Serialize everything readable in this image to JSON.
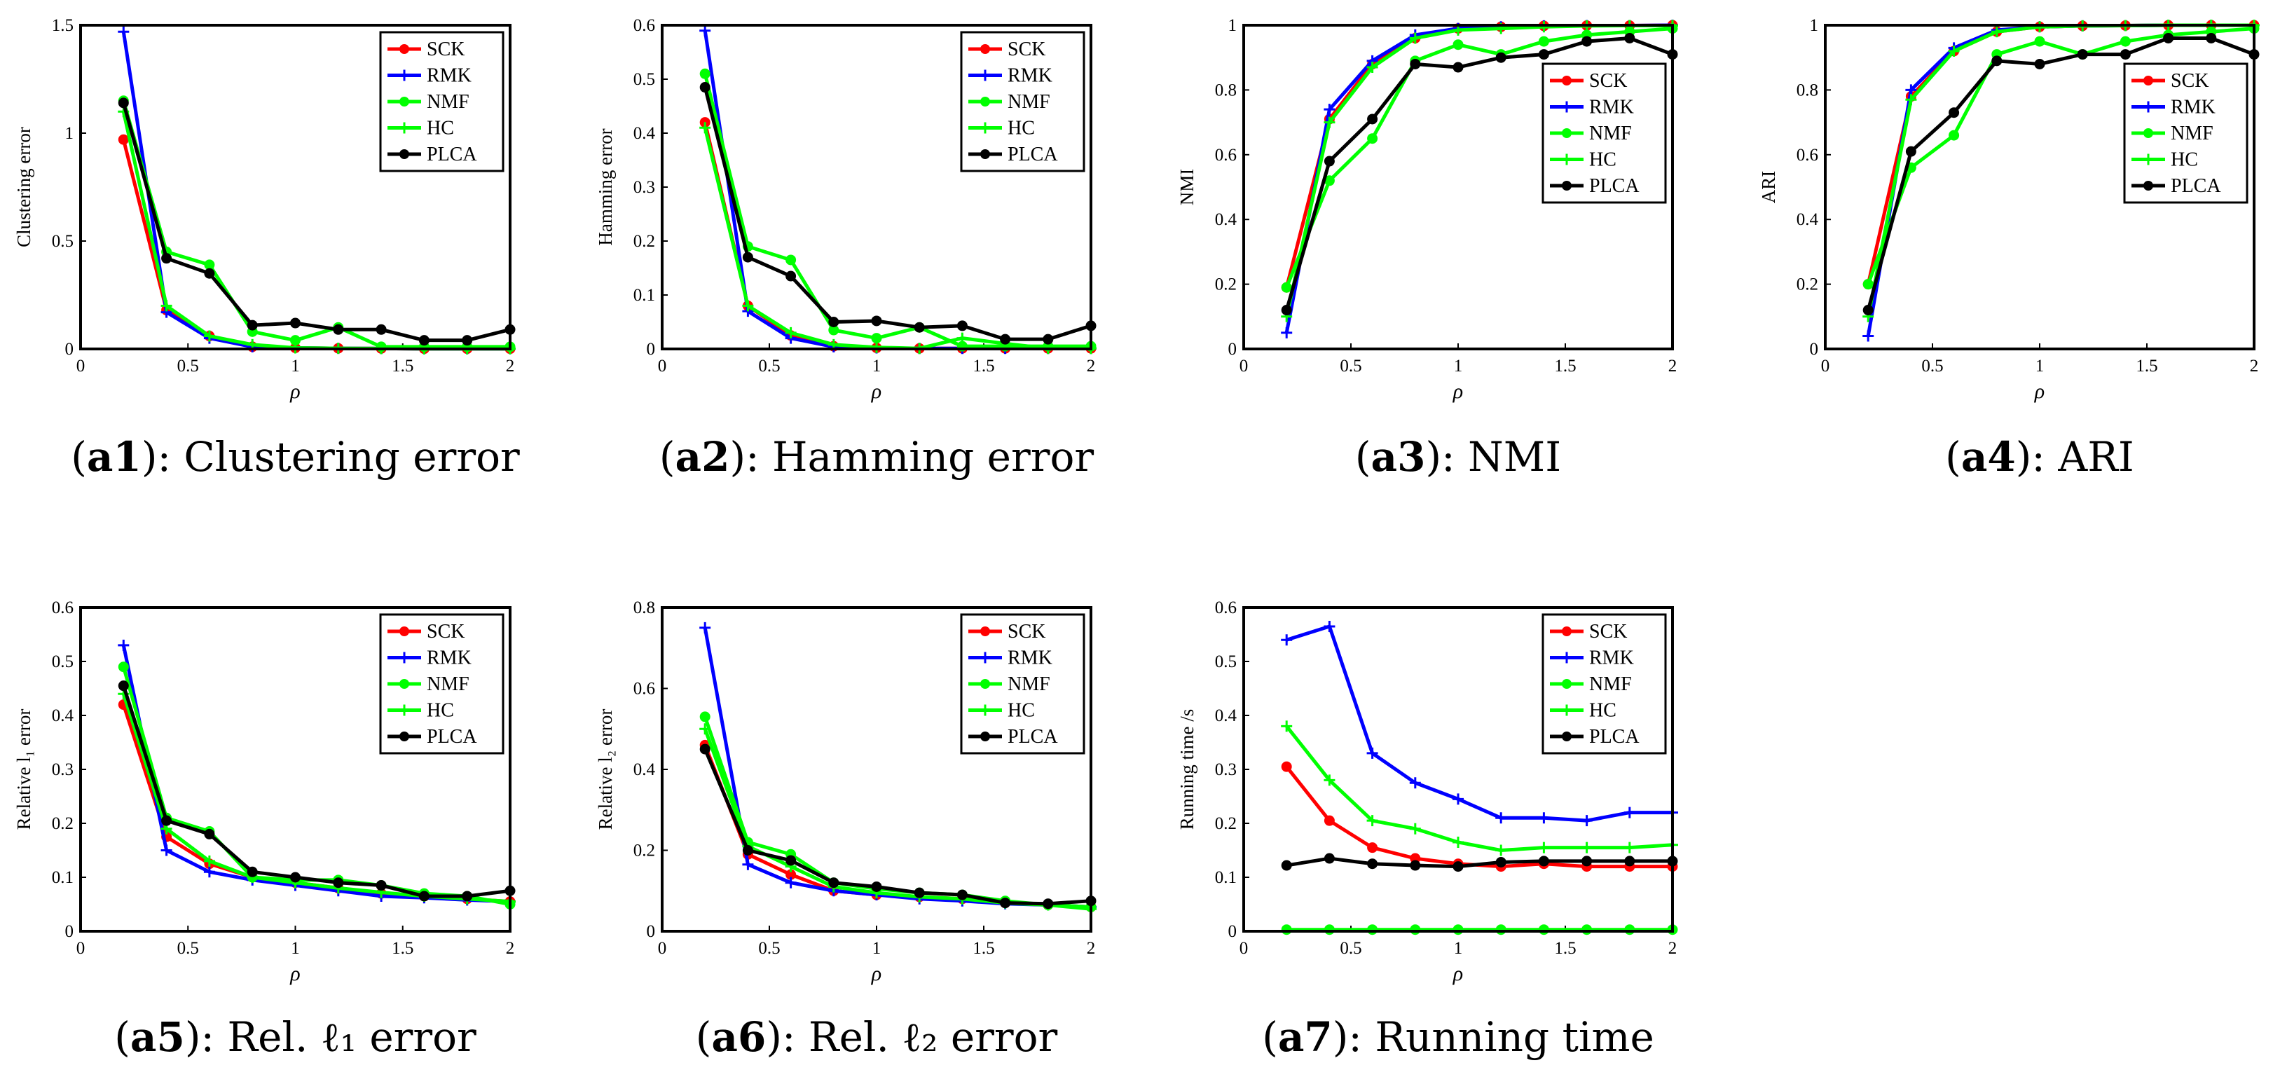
{
  "colors": {
    "SCK": "#ff0000",
    "RMK": "#0000ff",
    "NMF": "#00ff00",
    "HC": "#00ff00",
    "PLCA": "#000000"
  },
  "legend_entries": [
    "SCK",
    "RMK",
    "NMF",
    "HC",
    "PLCA"
  ],
  "chart_data": [
    {
      "id": "a1",
      "type": "line",
      "caption_tag": "a1",
      "caption_text": "Clustering error",
      "xlabel": "ρ",
      "ylabel": "Clustering error",
      "xlim": [
        0,
        2
      ],
      "ylim": [
        0,
        1.5
      ],
      "xticks": [
        "0",
        "0.5",
        "1",
        "1.5",
        "2"
      ],
      "yticks": [
        "0",
        "0.5",
        "1",
        "1.5"
      ],
      "legend_position": "top-right",
      "x": [
        0.2,
        0.4,
        0.6,
        0.8,
        1.0,
        1.2,
        1.4,
        1.6,
        1.8,
        2.0
      ],
      "series": [
        {
          "name": "SCK",
          "marker": "circle",
          "values": [
            0.97,
            0.18,
            0.06,
            0.01,
            0.005,
            0.003,
            0.002,
            0.001,
            0.001,
            0.001
          ]
        },
        {
          "name": "RMK",
          "marker": "plus",
          "values": [
            1.47,
            0.17,
            0.05,
            0.01,
            0.005,
            0.003,
            0.002,
            0.001,
            0.001,
            0.001
          ]
        },
        {
          "name": "NMF",
          "marker": "circle",
          "values": [
            1.15,
            0.45,
            0.39,
            0.08,
            0.04,
            0.1,
            0.01,
            0.01,
            0.01,
            0.01
          ]
        },
        {
          "name": "HC",
          "marker": "plus",
          "values": [
            1.1,
            0.2,
            0.06,
            0.02,
            0.005,
            0.003,
            0.002,
            0.001,
            0.001,
            0.001
          ]
        },
        {
          "name": "PLCA",
          "marker": "circle",
          "values": [
            1.14,
            0.42,
            0.35,
            0.11,
            0.12,
            0.09,
            0.09,
            0.04,
            0.04,
            0.09
          ]
        }
      ]
    },
    {
      "id": "a2",
      "type": "line",
      "caption_tag": "a2",
      "caption_text": "Hamming error",
      "xlabel": "ρ",
      "ylabel": "Hamming error",
      "xlim": [
        0,
        2
      ],
      "ylim": [
        0,
        0.6
      ],
      "xticks": [
        "0",
        "0.5",
        "1",
        "1.5",
        "2"
      ],
      "yticks": [
        "0",
        "0.1",
        "0.2",
        "0.3",
        "0.4",
        "0.5",
        "0.6"
      ],
      "legend_position": "top-right",
      "x": [
        0.2,
        0.4,
        0.6,
        0.8,
        1.0,
        1.2,
        1.4,
        1.6,
        1.8,
        2.0
      ],
      "series": [
        {
          "name": "SCK",
          "marker": "circle",
          "values": [
            0.42,
            0.08,
            0.025,
            0.005,
            0.002,
            0.001,
            0.001,
            0.001,
            0.001,
            0.001
          ]
        },
        {
          "name": "RMK",
          "marker": "plus",
          "values": [
            0.59,
            0.07,
            0.02,
            0.004,
            0.002,
            0.001,
            0.001,
            0.001,
            0.001,
            0.001
          ]
        },
        {
          "name": "NMF",
          "marker": "circle",
          "values": [
            0.51,
            0.19,
            0.165,
            0.035,
            0.02,
            0.04,
            0.005,
            0.005,
            0.005,
            0.005
          ]
        },
        {
          "name": "HC",
          "marker": "plus",
          "values": [
            0.41,
            0.08,
            0.03,
            0.008,
            0.003,
            0.001,
            0.02,
            0.01,
            0.001,
            0.001
          ]
        },
        {
          "name": "PLCA",
          "marker": "circle",
          "values": [
            0.485,
            0.17,
            0.135,
            0.05,
            0.052,
            0.04,
            0.043,
            0.018,
            0.018,
            0.043
          ]
        }
      ]
    },
    {
      "id": "a3",
      "type": "line",
      "caption_tag": "a3",
      "caption_text": "NMI",
      "xlabel": "ρ",
      "ylabel": "NMI",
      "xlim": [
        0,
        2
      ],
      "ylim": [
        0,
        1
      ],
      "xticks": [
        "0",
        "0.5",
        "1",
        "1.5",
        "2"
      ],
      "yticks": [
        "0",
        "0.2",
        "0.4",
        "0.6",
        "0.8",
        "1"
      ],
      "legend_position": "middle-right",
      "x": [
        0.2,
        0.4,
        0.6,
        0.8,
        1.0,
        1.2,
        1.4,
        1.6,
        1.8,
        2.0
      ],
      "series": [
        {
          "name": "SCK",
          "marker": "circle",
          "values": [
            0.19,
            0.71,
            0.88,
            0.96,
            0.99,
            0.995,
            0.998,
            0.999,
            0.999,
            1.0
          ]
        },
        {
          "name": "RMK",
          "marker": "plus",
          "values": [
            0.05,
            0.74,
            0.89,
            0.97,
            0.99,
            0.995,
            0.998,
            0.999,
            0.999,
            1.0
          ]
        },
        {
          "name": "NMF",
          "marker": "circle",
          "values": [
            0.19,
            0.52,
            0.65,
            0.89,
            0.94,
            0.91,
            0.95,
            0.97,
            0.98,
            0.99
          ]
        },
        {
          "name": "HC",
          "marker": "plus",
          "values": [
            0.1,
            0.7,
            0.87,
            0.96,
            0.985,
            0.99,
            0.995,
            0.998,
            0.999,
            0.999
          ]
        },
        {
          "name": "PLCA",
          "marker": "circle",
          "values": [
            0.12,
            0.58,
            0.71,
            0.88,
            0.87,
            0.9,
            0.91,
            0.95,
            0.96,
            0.91
          ]
        }
      ]
    },
    {
      "id": "a4",
      "type": "line",
      "caption_tag": "a4",
      "caption_text": "ARI",
      "xlabel": "ρ",
      "ylabel": "ARI",
      "xlim": [
        0,
        2
      ],
      "ylim": [
        0,
        1
      ],
      "xticks": [
        "0",
        "0.5",
        "1",
        "1.5",
        "2"
      ],
      "yticks": [
        "0",
        "0.2",
        "0.4",
        "0.6",
        "0.8",
        "1"
      ],
      "legend_position": "middle-right",
      "x": [
        0.2,
        0.4,
        0.6,
        0.8,
        1.0,
        1.2,
        1.4,
        1.6,
        1.8,
        2.0
      ],
      "series": [
        {
          "name": "SCK",
          "marker": "circle",
          "values": [
            0.2,
            0.78,
            0.92,
            0.98,
            0.995,
            0.998,
            0.999,
            1.0,
            1.0,
            1.0
          ]
        },
        {
          "name": "RMK",
          "marker": "plus",
          "values": [
            0.04,
            0.8,
            0.93,
            0.985,
            0.995,
            0.998,
            0.999,
            1.0,
            1.0,
            1.0
          ]
        },
        {
          "name": "NMF",
          "marker": "circle",
          "values": [
            0.2,
            0.56,
            0.66,
            0.91,
            0.95,
            0.91,
            0.95,
            0.97,
            0.98,
            0.99
          ]
        },
        {
          "name": "HC",
          "marker": "plus",
          "values": [
            0.1,
            0.77,
            0.92,
            0.98,
            0.995,
            0.998,
            0.999,
            1.0,
            1.0,
            1.0
          ]
        },
        {
          "name": "PLCA",
          "marker": "circle",
          "values": [
            0.12,
            0.61,
            0.73,
            0.89,
            0.88,
            0.91,
            0.91,
            0.96,
            0.96,
            0.91
          ]
        }
      ]
    },
    {
      "id": "a5",
      "type": "line",
      "caption_tag": "a5",
      "caption_text": "Rel. ℓ₁ error",
      "xlabel": "ρ",
      "ylabel": "Relative l₁ error",
      "xlim": [
        0,
        2
      ],
      "ylim": [
        0,
        0.6
      ],
      "xticks": [
        "0",
        "0.5",
        "1",
        "1.5",
        "2"
      ],
      "yticks": [
        "0",
        "0.1",
        "0.2",
        "0.3",
        "0.4",
        "0.5",
        "0.6"
      ],
      "legend_position": "top-right",
      "x": [
        0.2,
        0.4,
        0.6,
        0.8,
        1.0,
        1.2,
        1.4,
        1.6,
        1.8,
        2.0
      ],
      "series": [
        {
          "name": "SCK",
          "marker": "circle",
          "values": [
            0.42,
            0.175,
            0.125,
            0.1,
            0.09,
            0.08,
            0.07,
            0.065,
            0.06,
            0.055
          ]
        },
        {
          "name": "RMK",
          "marker": "plus",
          "values": [
            0.53,
            0.15,
            0.11,
            0.095,
            0.085,
            0.075,
            0.065,
            0.062,
            0.058,
            0.055
          ]
        },
        {
          "name": "NMF",
          "marker": "circle",
          "values": [
            0.49,
            0.21,
            0.185,
            0.1,
            0.095,
            0.095,
            0.085,
            0.07,
            0.065,
            0.05
          ]
        },
        {
          "name": "HC",
          "marker": "plus",
          "values": [
            0.44,
            0.19,
            0.13,
            0.1,
            0.09,
            0.08,
            0.072,
            0.065,
            0.06,
            0.055
          ]
        },
        {
          "name": "PLCA",
          "marker": "circle",
          "values": [
            0.455,
            0.205,
            0.18,
            0.11,
            0.1,
            0.09,
            0.085,
            0.065,
            0.065,
            0.075
          ]
        }
      ]
    },
    {
      "id": "a6",
      "type": "line",
      "caption_tag": "a6",
      "caption_text": "Rel. ℓ₂ error",
      "xlabel": "ρ",
      "ylabel": "Relative l₂ error",
      "xlim": [
        0,
        2
      ],
      "ylim": [
        0,
        0.8
      ],
      "xticks": [
        "0",
        "0.5",
        "1",
        "1.5",
        "2"
      ],
      "yticks": [
        "0",
        "0.2",
        "0.4",
        "0.6",
        "0.8"
      ],
      "legend_position": "top-right",
      "x": [
        0.2,
        0.4,
        0.6,
        0.8,
        1.0,
        1.2,
        1.4,
        1.6,
        1.8,
        2.0
      ],
      "series": [
        {
          "name": "SCK",
          "marker": "circle",
          "values": [
            0.46,
            0.19,
            0.14,
            0.1,
            0.09,
            0.085,
            0.08,
            0.07,
            0.065,
            0.06
          ]
        },
        {
          "name": "RMK",
          "marker": "plus",
          "values": [
            0.75,
            0.165,
            0.12,
            0.1,
            0.09,
            0.08,
            0.075,
            0.068,
            0.065,
            0.06
          ]
        },
        {
          "name": "NMF",
          "marker": "circle",
          "values": [
            0.53,
            0.22,
            0.19,
            0.12,
            0.105,
            0.095,
            0.09,
            0.075,
            0.065,
            0.06
          ]
        },
        {
          "name": "HC",
          "marker": "plus",
          "values": [
            0.5,
            0.21,
            0.16,
            0.11,
            0.095,
            0.085,
            0.08,
            0.07,
            0.065,
            0.055
          ]
        },
        {
          "name": "PLCA",
          "marker": "circle",
          "values": [
            0.45,
            0.2,
            0.175,
            0.12,
            0.11,
            0.095,
            0.09,
            0.07,
            0.068,
            0.075
          ]
        }
      ]
    },
    {
      "id": "a7",
      "type": "line",
      "caption_tag": "a7",
      "caption_text": "Running time",
      "xlabel": "ρ",
      "ylabel": "Running time /s",
      "xlim": [
        0,
        2
      ],
      "ylim": [
        0,
        0.6
      ],
      "xticks": [
        "0",
        "0.5",
        "1",
        "1.5",
        "2"
      ],
      "yticks": [
        "0",
        "0.1",
        "0.2",
        "0.3",
        "0.4",
        "0.5",
        "0.6"
      ],
      "legend_position": "top-right",
      "x": [
        0.2,
        0.4,
        0.6,
        0.8,
        1.0,
        1.2,
        1.4,
        1.6,
        1.8,
        2.0
      ],
      "series": [
        {
          "name": "SCK",
          "marker": "circle",
          "values": [
            0.305,
            0.205,
            0.155,
            0.135,
            0.125,
            0.12,
            0.125,
            0.12,
            0.12,
            0.12
          ]
        },
        {
          "name": "RMK",
          "marker": "plus",
          "values": [
            0.54,
            0.565,
            0.33,
            0.275,
            0.245,
            0.21,
            0.21,
            0.205,
            0.22,
            0.22
          ]
        },
        {
          "name": "NMF",
          "marker": "circle",
          "values": [
            0.003,
            0.003,
            0.003,
            0.003,
            0.003,
            0.003,
            0.003,
            0.003,
            0.003,
            0.003
          ]
        },
        {
          "name": "HC",
          "marker": "plus",
          "values": [
            0.38,
            0.28,
            0.205,
            0.19,
            0.165,
            0.15,
            0.155,
            0.155,
            0.155,
            0.16
          ]
        },
        {
          "name": "PLCA",
          "marker": "circle",
          "values": [
            0.122,
            0.135,
            0.125,
            0.122,
            0.12,
            0.128,
            0.13,
            0.13,
            0.13,
            0.13
          ]
        }
      ]
    }
  ]
}
